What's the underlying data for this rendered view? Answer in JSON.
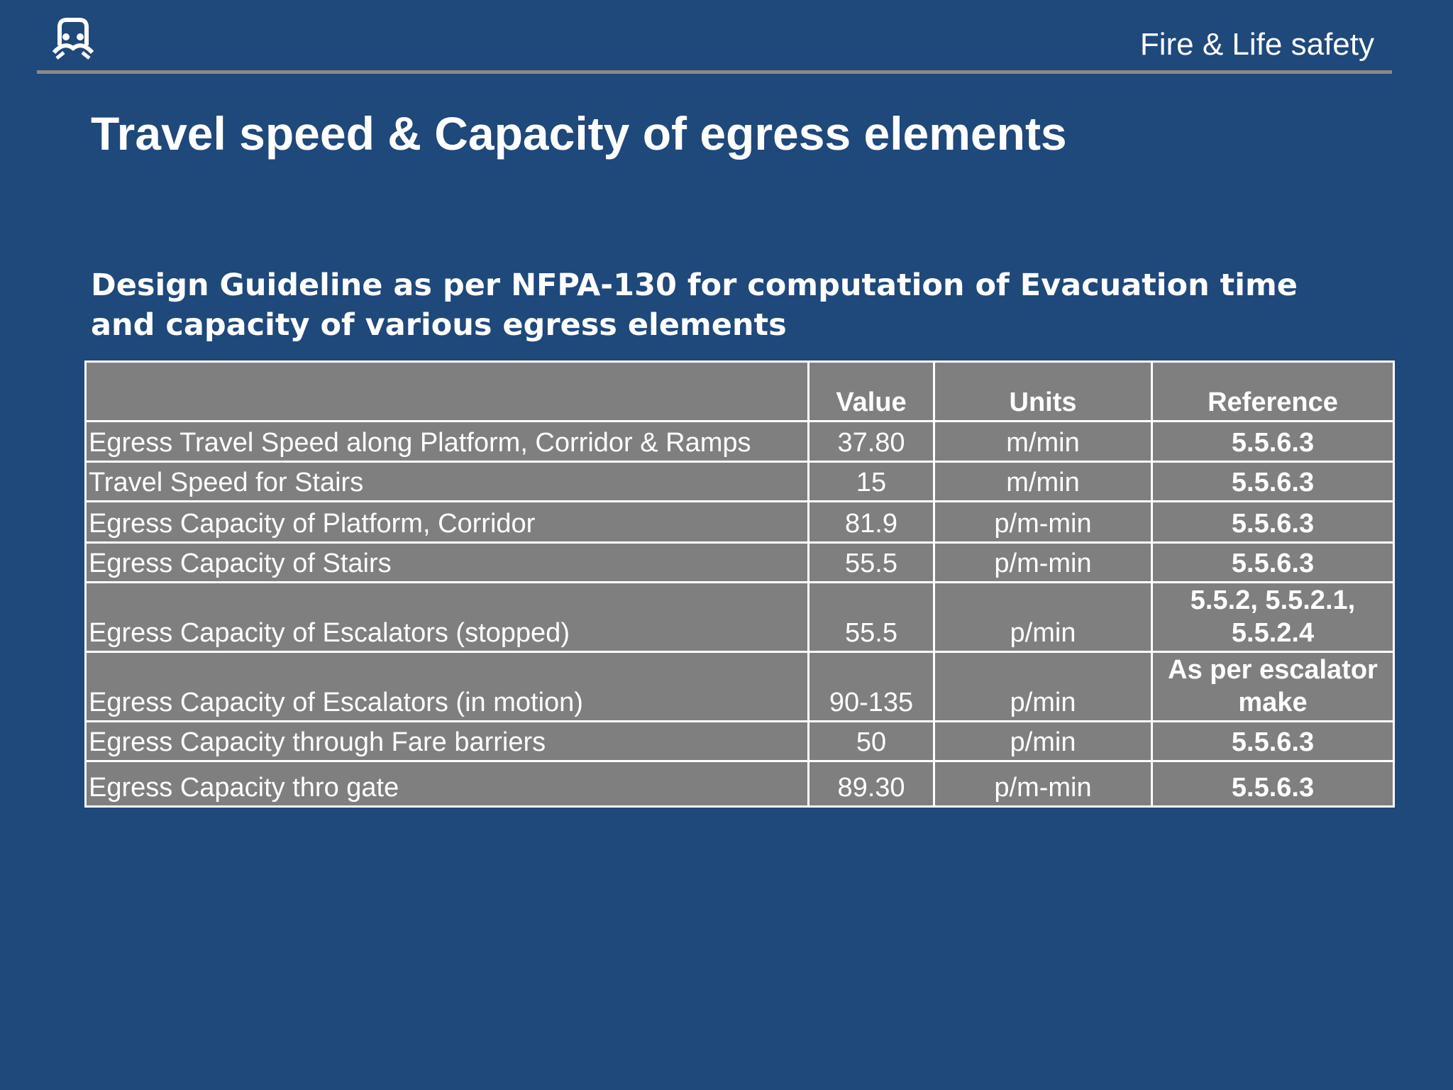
{
  "header": {
    "brand": "Fire & Life safety"
  },
  "title": "Travel speed & Capacity of egress elements",
  "subtitle": "Design Guideline as per NFPA-130 for computation of Evacuation time and capacity of various egress elements",
  "table": {
    "columns": [
      "Value",
      "Units",
      "Reference"
    ],
    "rows": [
      [
        "Egress Travel Speed along Platform, Corridor & Ramps",
        "37.80",
        "m/min",
        "5.5.6.3"
      ],
      [
        "Travel Speed for Stairs",
        "15",
        "m/min",
        "5.5.6.3"
      ],
      [
        "Egress Capacity of Platform, Corridor",
        "81.9",
        "p/m-min",
        "5.5.6.3"
      ],
      [
        "Egress Capacity of Stairs",
        "55.5",
        "p/m-min",
        "5.5.6.3"
      ],
      [
        "Egress Capacity of Escalators  (stopped)",
        "55.5",
        "p/min",
        "5.5.2, 5.5.2.1, 5.5.2.4"
      ],
      [
        "Egress Capacity of Escalators  (in motion)",
        "90-135",
        "p/min",
        "As per escalator make"
      ],
      [
        "Egress Capacity through Fare barriers",
        "50",
        "p/min",
        "5.5.6.3"
      ],
      [
        "Egress Capacity thro gate",
        "89.30",
        "p/m-min",
        "5.5.6.3"
      ]
    ]
  }
}
